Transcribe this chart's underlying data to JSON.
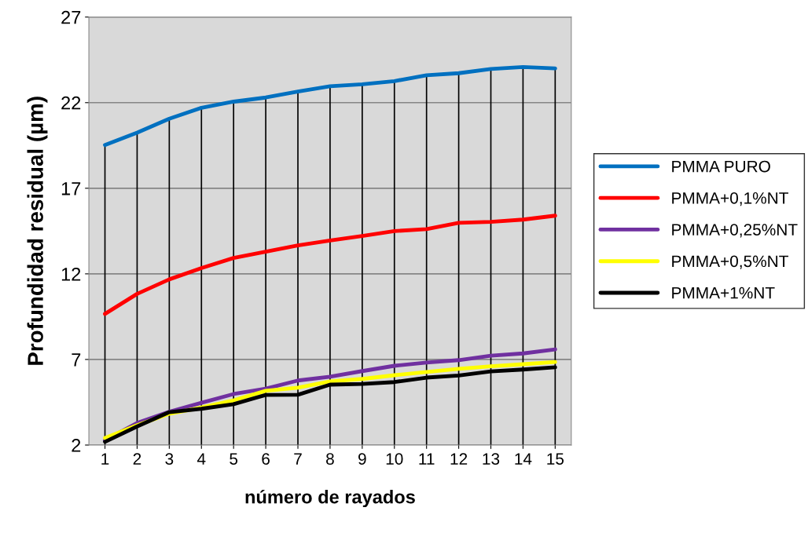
{
  "chart_data": {
    "type": "line",
    "xlabel": "número de rayados",
    "ylabel": "Profundidad residual (µm)",
    "categories": [
      "1",
      "2",
      "3",
      "4",
      "5",
      "6",
      "7",
      "8",
      "9",
      "10",
      "11",
      "12",
      "13",
      "14",
      "15"
    ],
    "ylim": [
      2,
      27
    ],
    "yticks": [
      2,
      7,
      12,
      17,
      22,
      27
    ],
    "grid": true,
    "legend": "right",
    "marker": "none",
    "line_style": "solid",
    "series": [
      {
        "name": "PMMA PURO",
        "color": "#0070c0",
        "values": [
          19.53,
          20.25,
          21.06,
          21.7,
          22.06,
          22.3,
          22.65,
          22.96,
          23.07,
          23.26,
          23.6,
          23.72,
          23.97,
          24.08,
          24.0
        ]
      },
      {
        "name": "PMMA+0,1%NT",
        "color": "#ff0000",
        "values": [
          9.66,
          10.83,
          11.68,
          12.34,
          12.93,
          13.29,
          13.66,
          13.95,
          14.21,
          14.5,
          14.61,
          14.98,
          15.04,
          15.17,
          15.4
        ]
      },
      {
        "name": "PMMA+0,25%NT",
        "color": "#7030a0",
        "values": [
          2.28,
          3.29,
          3.94,
          4.47,
          4.98,
          5.29,
          5.77,
          5.99,
          6.32,
          6.63,
          6.82,
          6.96,
          7.22,
          7.35,
          7.59
        ]
      },
      {
        "name": "PMMA+0,5%NT",
        "color": "#ffff00",
        "values": [
          2.41,
          3.15,
          3.83,
          4.19,
          4.61,
          5.17,
          5.35,
          5.72,
          5.86,
          6.08,
          6.27,
          6.45,
          6.6,
          6.72,
          6.85
        ]
      },
      {
        "name": "PMMA+1%NT",
        "color": "#000000",
        "values": [
          2.19,
          3.09,
          3.92,
          4.12,
          4.39,
          4.93,
          4.94,
          5.53,
          5.57,
          5.68,
          5.94,
          6.06,
          6.3,
          6.41,
          6.54
        ]
      }
    ]
  }
}
